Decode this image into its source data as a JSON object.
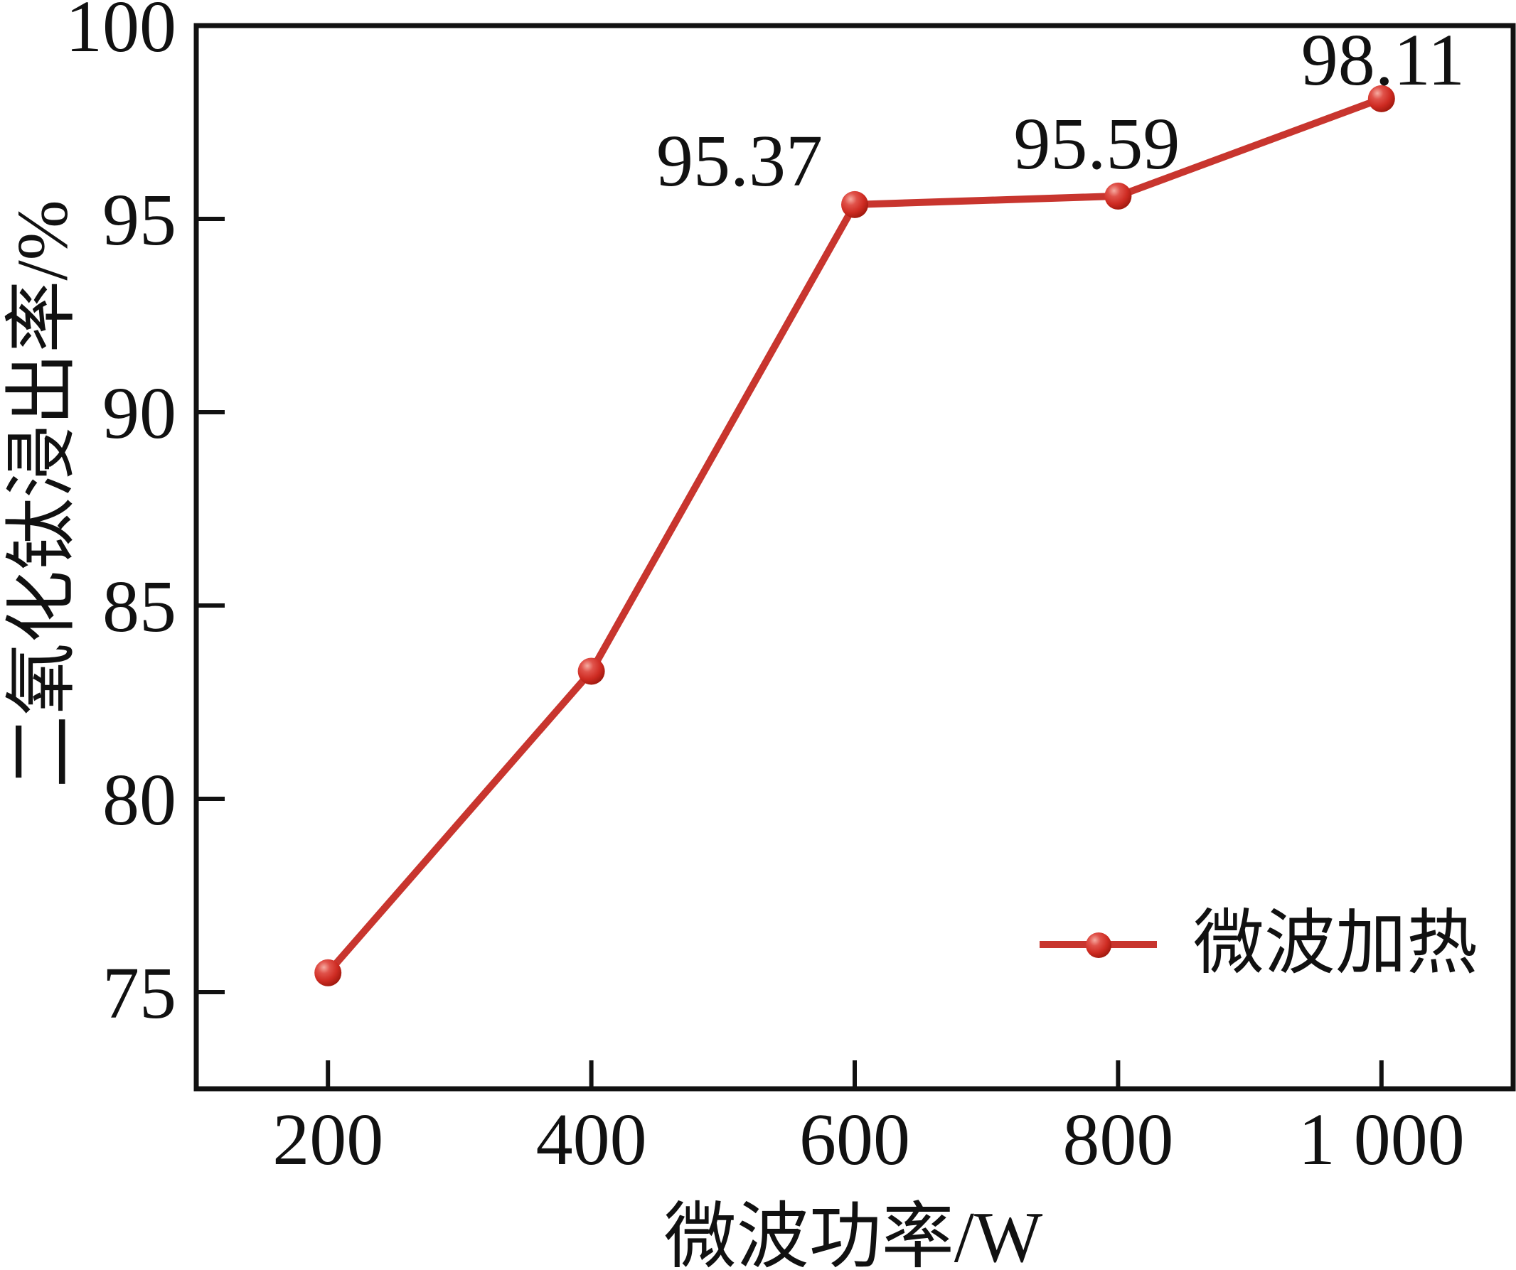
{
  "page": {
    "background": "#ffffff"
  },
  "chart_data": {
    "type": "line",
    "title": "",
    "xlabel": "微波功率/W",
    "ylabel": "二氧化钛浸出率/%",
    "xlim": [
      100,
      1100
    ],
    "ylim": [
      72.5,
      100
    ],
    "x_ticks": [
      200,
      400,
      600,
      800,
      1000
    ],
    "x_tick_labels": [
      "200",
      "400",
      "600",
      "800",
      "1 000"
    ],
    "y_ticks": [
      75,
      80,
      85,
      90,
      95,
      100
    ],
    "y_tick_labels": [
      "75",
      "80",
      "85",
      "90",
      "95",
      "100"
    ],
    "grid": false,
    "legend_position": "lower-right",
    "axis_color": "#111111",
    "series": [
      {
        "name": "微波加热",
        "color": "#c8352e",
        "marker": "red-sphere",
        "x": [
          200,
          400,
          600,
          800,
          1000
        ],
        "y": [
          75.5,
          83.3,
          95.37,
          95.59,
          98.11
        ],
        "point_labels": [
          "",
          "",
          "95.37",
          "95.59",
          "98.11"
        ]
      }
    ]
  }
}
